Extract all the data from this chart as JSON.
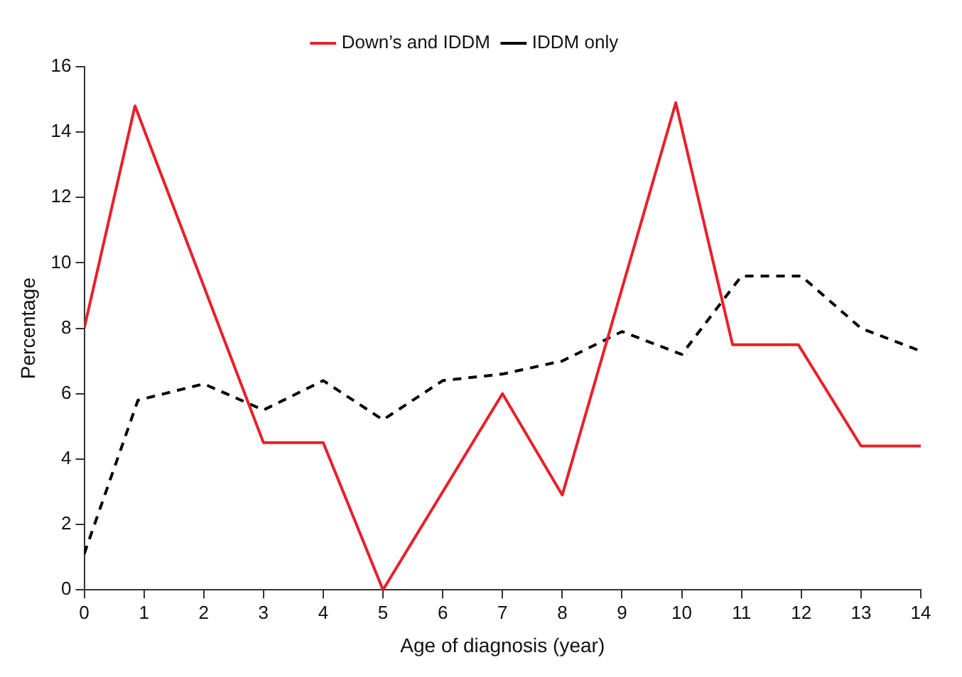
{
  "chart_data": {
    "type": "line",
    "xlabel": "Age of diagnosis (year)",
    "ylabel": "Percentage",
    "xlim": [
      0,
      14
    ],
    "xticks": [
      0,
      1,
      2,
      3,
      4,
      5,
      6,
      7,
      8,
      9,
      10,
      11,
      12,
      13,
      14
    ],
    "ylim": [
      0,
      16
    ],
    "yticks": [
      0,
      2,
      4,
      6,
      8,
      10,
      12,
      14,
      16
    ],
    "grid": false,
    "legend": "top",
    "marker": "none",
    "series": [
      {
        "name": "Down’s and IDDM",
        "color": "#e8202a",
        "line_style": "solid",
        "x": [
          0,
          0.85,
          3,
          4,
          5,
          7,
          8,
          9.9,
          10.85,
          11.95,
          13,
          14
        ],
        "values": [
          8,
          14.8,
          4.5,
          4.5,
          0,
          6,
          2.9,
          14.9,
          7.5,
          7.5,
          4.4,
          4.4
        ]
      },
      {
        "name": "IDDM only",
        "color": "#000000",
        "line_style": "dashed",
        "x": [
          0,
          0.9,
          2,
          3,
          4,
          5,
          6,
          7,
          8,
          9,
          10,
          11,
          12,
          13,
          14
        ],
        "values": [
          1.1,
          5.8,
          6.3,
          5.5,
          6.4,
          5.2,
          6.4,
          6.6,
          7,
          7.9,
          7.2,
          9.6,
          9.6,
          8,
          7.3
        ]
      }
    ]
  }
}
